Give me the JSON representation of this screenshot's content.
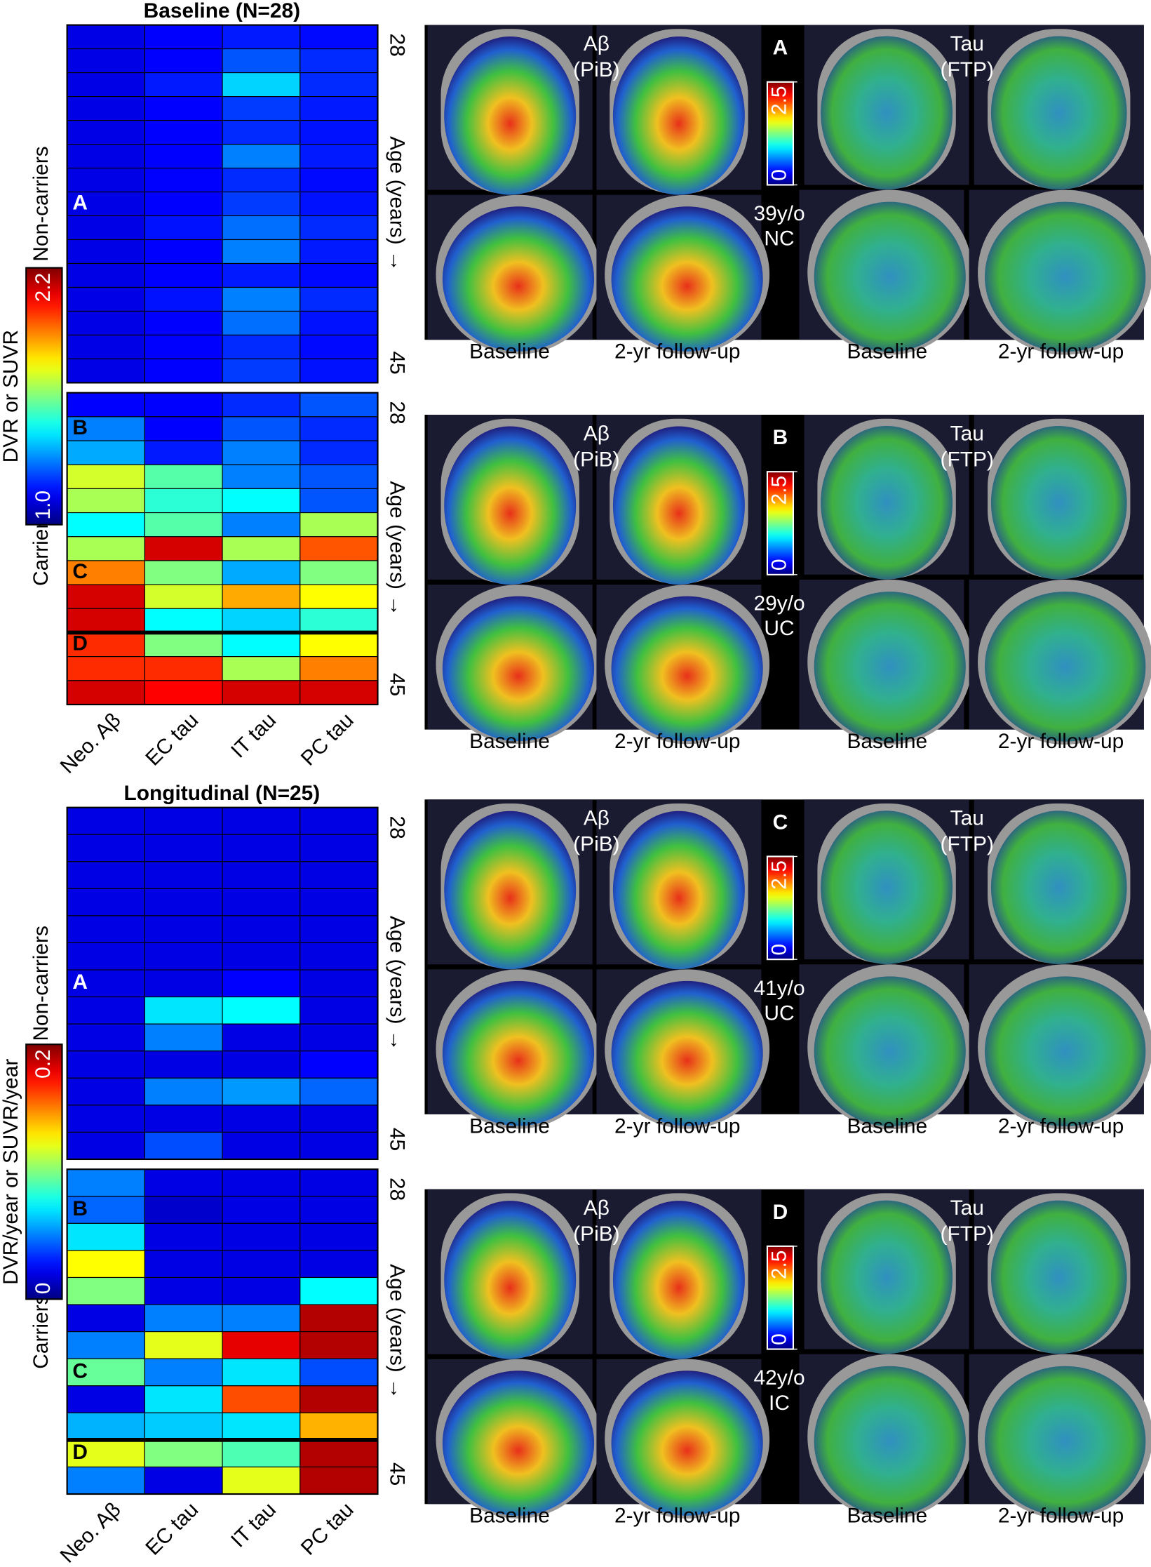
{
  "chart_data": [
    {
      "type": "heatmap",
      "title": "Baseline (N=28)",
      "columns": [
        "Neo. Aβ",
        "EC tau",
        "IT tau",
        "PC tau"
      ],
      "colormap": "jet",
      "color_label": "DVR or SUVR",
      "clim": [
        1,
        2.2
      ],
      "cticks": [
        {
          "value": 1,
          "label": "1.0"
        },
        2.2
      ],
      "groups": [
        {
          "name": "Non-carriers",
          "age_label": "Age (years) →",
          "age_ticks": [
            28,
            45
          ],
          "row_labels": [
            null,
            null,
            null,
            null,
            null,
            null,
            null,
            "A",
            null,
            null,
            null,
            null,
            null,
            null,
            null
          ],
          "values": [
            [
              1.12,
              1.15,
              1.18,
              1.16
            ],
            [
              1.12,
              1.15,
              1.25,
              1.2
            ],
            [
              1.12,
              1.18,
              1.4,
              1.2
            ],
            [
              1.12,
              1.15,
              1.22,
              1.18
            ],
            [
              1.12,
              1.15,
              1.2,
              1.17
            ],
            [
              1.12,
              1.15,
              1.3,
              1.18
            ],
            [
              1.12,
              1.15,
              1.2,
              1.16
            ],
            [
              1.12,
              1.15,
              1.22,
              1.17
            ],
            [
              1.12,
              1.17,
              1.28,
              1.2
            ],
            [
              1.12,
              1.15,
              1.3,
              1.18
            ],
            [
              1.12,
              1.15,
              1.18,
              1.16
            ],
            [
              1.12,
              1.17,
              1.3,
              1.2
            ],
            [
              1.12,
              1.15,
              1.28,
              1.17
            ],
            [
              1.12,
              1.15,
              1.2,
              1.16
            ],
            [
              1.12,
              1.15,
              1.22,
              1.17
            ]
          ]
        },
        {
          "name": "Carriers",
          "age_label": "Age (years) →",
          "age_ticks": [
            28,
            45
          ],
          "separator_before_row": 10,
          "row_labels": [
            null,
            "B",
            null,
            null,
            null,
            null,
            null,
            "C",
            null,
            null,
            "D",
            null,
            null
          ],
          "values": [
            [
              1.15,
              1.15,
              1.2,
              1.25
            ],
            [
              1.3,
              1.15,
              1.25,
              1.2
            ],
            [
              1.35,
              1.18,
              1.3,
              1.2
            ],
            [
              1.7,
              1.55,
              1.3,
              1.25
            ],
            [
              1.65,
              1.5,
              1.45,
              1.25
            ],
            [
              1.45,
              1.55,
              1.3,
              1.65
            ],
            [
              1.65,
              2.1,
              1.65,
              1.95
            ],
            [
              1.9,
              1.6,
              1.35,
              1.6
            ],
            [
              2.1,
              1.7,
              1.85,
              1.75
            ],
            [
              2.1,
              1.45,
              1.4,
              1.5
            ],
            [
              2.0,
              1.6,
              1.45,
              1.75
            ],
            [
              2.0,
              2.0,
              1.65,
              1.9
            ],
            [
              2.1,
              2.05,
              2.1,
              2.1
            ]
          ]
        }
      ]
    },
    {
      "type": "heatmap",
      "title": "Longitudinal (N=25)",
      "columns": [
        "Neo. Aβ",
        "EC tau",
        "IT tau",
        "PC tau"
      ],
      "colormap": "jet",
      "color_label": "DVR/year or SUVR/year",
      "clim": [
        0,
        0.2
      ],
      "cticks": [
        0,
        0.2
      ],
      "groups": [
        {
          "name": "Non-carriers",
          "age_label": "Age (years) →",
          "age_ticks": [
            28,
            45
          ],
          "row_labels": [
            null,
            null,
            null,
            null,
            null,
            null,
            "A",
            null,
            null,
            null,
            null,
            null,
            null
          ],
          "values": [
            [
              0.02,
              0.02,
              0.02,
              0.02
            ],
            [
              0.02,
              0.02,
              0.02,
              0.02
            ],
            [
              0.02,
              0.02,
              0.02,
              0.02
            ],
            [
              0.02,
              0.02,
              0.02,
              0.02
            ],
            [
              0.02,
              0.02,
              0.02,
              0.02
            ],
            [
              0.02,
              0.02,
              0.02,
              0.02
            ],
            [
              0.02,
              0.02,
              0.025,
              0.02
            ],
            [
              0.02,
              0.07,
              0.075,
              0.02
            ],
            [
              0.02,
              0.05,
              0.02,
              0.02
            ],
            [
              0.02,
              0.02,
              0.02,
              0.025
            ],
            [
              0.02,
              0.05,
              0.055,
              0.045
            ],
            [
              0.02,
              0.02,
              0.02,
              0.02
            ],
            [
              0.02,
              0.04,
              0.02,
              0.02
            ]
          ]
        },
        {
          "name": "Carriers",
          "age_label": "Age (years) →",
          "age_ticks": [
            28,
            45
          ],
          "separator_before_row": 10,
          "row_labels": [
            null,
            "B",
            null,
            null,
            null,
            null,
            null,
            "C",
            null,
            null,
            "D",
            null
          ],
          "values": [
            [
              0.05,
              0.02,
              0.02,
              0.02
            ],
            [
              0.045,
              0.015,
              0.02,
              0.02
            ],
            [
              0.07,
              0.02,
              0.02,
              0.02
            ],
            [
              0.125,
              0.02,
              0.02,
              0.02
            ],
            [
              0.1,
              0.02,
              0.02,
              0.075
            ],
            [
              0.02,
              0.05,
              0.05,
              0.19
            ],
            [
              0.05,
              0.12,
              0.18,
              0.19
            ],
            [
              0.095,
              0.05,
              0.07,
              0.04
            ],
            [
              0.02,
              0.07,
              0.16,
              0.19
            ],
            [
              0.06,
              0.065,
              0.07,
              0.14
            ],
            [
              0.12,
              0.1,
              0.09,
              0.19
            ],
            [
              0.05,
              0.02,
              0.12,
              0.19
            ]
          ]
        }
      ]
    }
  ],
  "panels": [
    {
      "letter": "A",
      "amyloid_label": [
        "Aβ",
        "(PiB)"
      ],
      "tau_label": [
        "Tau",
        "(FTP)"
      ],
      "subject": [
        "39y/o",
        "NC"
      ],
      "scale_lim": [
        0,
        2.5
      ],
      "scale_ticks": [
        0,
        2.5
      ],
      "captions": [
        "Baseline",
        "2-yr follow-up",
        "Baseline",
        "2-yr follow-up"
      ]
    },
    {
      "letter": "B",
      "amyloid_label": [
        "Aβ",
        "(PiB)"
      ],
      "tau_label": [
        "Tau",
        "(FTP)"
      ],
      "subject": [
        "29y/o",
        "UC"
      ],
      "scale_lim": [
        0,
        2.5
      ],
      "scale_ticks": [
        0,
        2.5
      ],
      "captions": [
        "Baseline",
        "2-yr follow-up",
        "Baseline",
        "2-yr follow-up"
      ]
    },
    {
      "letter": "C",
      "amyloid_label": [
        "Aβ",
        "(PiB)"
      ],
      "tau_label": [
        "Tau",
        "(FTP)"
      ],
      "subject": [
        "41y/o",
        "UC"
      ],
      "scale_lim": [
        0,
        2.5
      ],
      "scale_ticks": [
        0,
        2.5
      ],
      "captions": [
        "Baseline",
        "2-yr follow-up",
        "Baseline",
        "2-yr follow-up"
      ]
    },
    {
      "letter": "D",
      "amyloid_label": [
        "Aβ",
        "(PiB)"
      ],
      "tau_label": [
        "Tau",
        "(FTP)"
      ],
      "subject": [
        "42y/o",
        "IC"
      ],
      "scale_lim": [
        0,
        2.5
      ],
      "scale_ticks": [
        0,
        2.5
      ],
      "captions": [
        "Baseline",
        "2-yr follow-up",
        "Baseline",
        "2-yr follow-up"
      ]
    }
  ]
}
